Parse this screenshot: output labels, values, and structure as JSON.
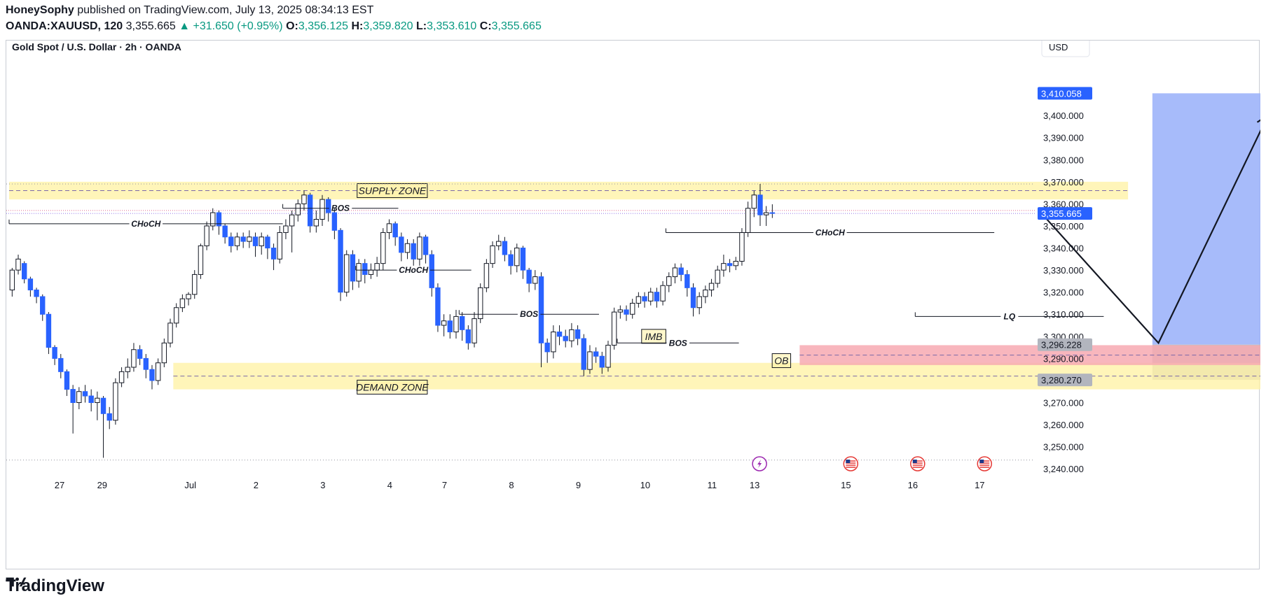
{
  "header": {
    "author": "HoneySophy",
    "published_text": "published on TradingView.com, July 13, 2025 08:34:13 EST",
    "symbol": "OANDA:XAUUSD, 120",
    "last": "3,355.665",
    "change": "▲ +31.650 (+0.95%)",
    "o_label": "O:",
    "o_value": "3,356.125",
    "h_label": "H:",
    "h_value": "3,359.820",
    "l_label": "L:",
    "l_value": "3,353.610",
    "c_label": "C:",
    "c_value": "3,355.665"
  },
  "chart_title": "Gold Spot / U.S. Dollar · 2h · OANDA",
  "currency_button": "USD",
  "footer": {
    "brand": "TradingView"
  },
  "colors": {
    "up_body": "#ffffff",
    "down_body": "#2962ff",
    "wick": "#131722",
    "supply": "#fff2a8",
    "demand": "#fff2a8",
    "ob": "#f7a9b2",
    "target": "#9db4fa",
    "stop": "#b5b5b5"
  },
  "chart_data": {
    "type": "candlestick",
    "y_axis": {
      "min": 3235,
      "max": 3420,
      "ticks": [
        "3,240.000",
        "3,250.000",
        "3,260.000",
        "3,270.000",
        "3,280.000",
        "3,290.000",
        "3,300.000",
        "3,310.000",
        "3,320.000",
        "3,330.000",
        "3,340.000",
        "3,350.000",
        "3,360.000",
        "3,370.000",
        "3,380.000",
        "3,390.000",
        "3,400.000"
      ]
    },
    "x_axis": {
      "labels": [
        "27",
        "29",
        "Jul",
        "2",
        "3",
        "4",
        "7",
        "8",
        "9",
        "10",
        "11",
        "13",
        "15",
        "16",
        "17"
      ]
    },
    "price_tags": [
      {
        "label": "3,410.058",
        "value": 3410.058,
        "style": "blue"
      },
      {
        "label": "3,355.665",
        "value": 3355.665,
        "style": "blue"
      },
      {
        "label": "3,296.228",
        "value": 3296.228,
        "style": "gray"
      },
      {
        "label": "3,280.270",
        "value": 3280.27,
        "style": "gray"
      }
    ],
    "zones": [
      {
        "label": "SUPPLY ZONE",
        "from": 3362,
        "to": 3370,
        "x0": 0,
        "x1": 184
      },
      {
        "label": "DEMAND ZONE",
        "from": 3276,
        "to": 3288,
        "x0": 27,
        "x1": 215
      },
      {
        "label": "OB",
        "from": 3287,
        "to": 3296,
        "x0": 130,
        "x1": 223
      },
      {
        "label": "IMB",
        "at": 3298,
        "x": 144
      }
    ],
    "structure": [
      {
        "label": "CHoCH",
        "value": 3351,
        "x0": 0,
        "x1": 45
      },
      {
        "label": "BOS",
        "value": 3358,
        "x0": 45,
        "x1": 64
      },
      {
        "label": "CHoCH",
        "value": 3330,
        "x0": 57,
        "x1": 76
      },
      {
        "label": "BOS",
        "value": 3310,
        "x0": 74,
        "x1": 97
      },
      {
        "label": "CHoCH",
        "value": 3347,
        "x0": 108,
        "x1": 162
      },
      {
        "label": "BOS",
        "value": 3297,
        "x0": 100,
        "x1": 120
      },
      {
        "label": "LQ",
        "value": 3309,
        "x0": 149,
        "x1": 180
      }
    ],
    "position": {
      "entry": 3296.228,
      "target": 3410.058,
      "stop": 3280.27,
      "x0": 188,
      "x1": 225
    },
    "projection": [
      {
        "x": 170,
        "y": 3355
      },
      {
        "x": 189,
        "y": 3297
      },
      {
        "x": 207,
        "y": 3400
      }
    ],
    "candles": [
      [
        3321,
        3330,
        3318,
        3331
      ],
      [
        3330,
        3335,
        3328,
        3337
      ],
      [
        3333,
        3326,
        3324,
        3334
      ],
      [
        3326,
        3321,
        3318,
        3327
      ],
      [
        3321,
        3318,
        3315,
        3322
      ],
      [
        3318,
        3310,
        3307,
        3319
      ],
      [
        3310,
        3295,
        3292,
        3311
      ],
      [
        3295,
        3290,
        3287,
        3296
      ],
      [
        3290,
        3284,
        3281,
        3292
      ],
      [
        3284,
        3276,
        3273,
        3285
      ],
      [
        3276,
        3270,
        3256,
        3278
      ],
      [
        3270,
        3275,
        3267,
        3277
      ],
      [
        3275,
        3273,
        3270,
        3278
      ],
      [
        3273,
        3270,
        3266,
        3276
      ],
      [
        3270,
        3272,
        3262,
        3275
      ],
      [
        3272,
        3265,
        3245,
        3273
      ],
      [
        3265,
        3262,
        3258,
        3268
      ],
      [
        3262,
        3279,
        3260,
        3281
      ],
      [
        3279,
        3284,
        3277,
        3286
      ],
      [
        3284,
        3286,
        3281,
        3290
      ],
      [
        3286,
        3294,
        3284,
        3297
      ],
      [
        3294,
        3290,
        3287,
        3296
      ],
      [
        3290,
        3285,
        3281,
        3292
      ],
      [
        3285,
        3280,
        3276,
        3287
      ],
      [
        3280,
        3288,
        3278,
        3290
      ],
      [
        3288,
        3297,
        3286,
        3299
      ],
      [
        3297,
        3306,
        3295,
        3308
      ],
      [
        3306,
        3313,
        3304,
        3315
      ],
      [
        3313,
        3317,
        3311,
        3319
      ],
      [
        3317,
        3319,
        3314,
        3320
      ],
      [
        3319,
        3328,
        3317,
        3330
      ],
      [
        3328,
        3341,
        3326,
        3342
      ],
      [
        3341,
        3350,
        3339,
        3352
      ],
      [
        3350,
        3356,
        3348,
        3358
      ],
      [
        3356,
        3350,
        3346,
        3357
      ],
      [
        3350,
        3345,
        3342,
        3351
      ],
      [
        3345,
        3341,
        3338,
        3347
      ],
      [
        3341,
        3345,
        3339,
        3347
      ],
      [
        3345,
        3343,
        3340,
        3347
      ],
      [
        3343,
        3345,
        3340,
        3348
      ],
      [
        3345,
        3341,
        3336,
        3347
      ],
      [
        3341,
        3345,
        3337,
        3347
      ],
      [
        3345,
        3340,
        3335,
        3346
      ],
      [
        3340,
        3335,
        3330,
        3342
      ],
      [
        3335,
        3347,
        3333,
        3350
      ],
      [
        3347,
        3350,
        3344,
        3353
      ],
      [
        3350,
        3355,
        3338,
        3357
      ],
      [
        3355,
        3360,
        3352,
        3362
      ],
      [
        3360,
        3364,
        3357,
        3366
      ],
      [
        3364,
        3350,
        3347,
        3365
      ],
      [
        3350,
        3353,
        3347,
        3357
      ],
      [
        3353,
        3362,
        3350,
        3364
      ],
      [
        3362,
        3356,
        3352,
        3363
      ],
      [
        3356,
        3348,
        3344,
        3358
      ],
      [
        3348,
        3320,
        3316,
        3349
      ],
      [
        3320,
        3337,
        3318,
        3339
      ],
      [
        3337,
        3325,
        3321,
        3339
      ],
      [
        3325,
        3333,
        3322,
        3335
      ],
      [
        3333,
        3328,
        3324,
        3335
      ],
      [
        3328,
        3330,
        3326,
        3333
      ],
      [
        3330,
        3333,
        3327,
        3336
      ],
      [
        3333,
        3347,
        3330,
        3349
      ],
      [
        3347,
        3351,
        3344,
        3353
      ],
      [
        3351,
        3345,
        3341,
        3352
      ],
      [
        3345,
        3338,
        3334,
        3347
      ],
      [
        3338,
        3342,
        3335,
        3344
      ],
      [
        3342,
        3335,
        3332,
        3344
      ],
      [
        3335,
        3345,
        3332,
        3347
      ],
      [
        3345,
        3337,
        3333,
        3346
      ],
      [
        3337,
        3322,
        3318,
        3339
      ],
      [
        3322,
        3305,
        3302,
        3324
      ],
      [
        3305,
        3307,
        3300,
        3310
      ],
      [
        3307,
        3302,
        3299,
        3310
      ],
      [
        3302,
        3309,
        3299,
        3312
      ],
      [
        3309,
        3303,
        3298,
        3311
      ],
      [
        3303,
        3297,
        3294,
        3305
      ],
      [
        3297,
        3308,
        3295,
        3311
      ],
      [
        3308,
        3322,
        3306,
        3324
      ],
      [
        3322,
        3333,
        3320,
        3335
      ],
      [
        3333,
        3341,
        3331,
        3343
      ],
      [
        3341,
        3343,
        3339,
        3346
      ],
      [
        3343,
        3337,
        3334,
        3345
      ],
      [
        3337,
        3332,
        3328,
        3339
      ],
      [
        3332,
        3340,
        3329,
        3342
      ],
      [
        3340,
        3330,
        3326,
        3341
      ],
      [
        3330,
        3324,
        3320,
        3331
      ],
      [
        3324,
        3327,
        3321,
        3330
      ],
      [
        3327,
        3297,
        3286,
        3329
      ],
      [
        3297,
        3293,
        3288,
        3299
      ],
      [
        3293,
        3302,
        3290,
        3305
      ],
      [
        3302,
        3300,
        3296,
        3305
      ],
      [
        3300,
        3298,
        3295,
        3303
      ],
      [
        3298,
        3303,
        3295,
        3306
      ],
      [
        3303,
        3299,
        3296,
        3305
      ],
      [
        3299,
        3285,
        3282,
        3301
      ],
      [
        3285,
        3293,
        3283,
        3296
      ],
      [
        3293,
        3291,
        3288,
        3295
      ],
      [
        3291,
        3286,
        3283,
        3293
      ],
      [
        3286,
        3296,
        3284,
        3298
      ],
      [
        3296,
        3311,
        3294,
        3313
      ],
      [
        3311,
        3312,
        3308,
        3314
      ],
      [
        3312,
        3310,
        3307,
        3314
      ],
      [
        3310,
        3315,
        3308,
        3317
      ],
      [
        3315,
        3318,
        3313,
        3320
      ],
      [
        3318,
        3316,
        3313,
        3320
      ],
      [
        3316,
        3320,
        3314,
        3322
      ],
      [
        3320,
        3316,
        3313,
        3322
      ],
      [
        3316,
        3323,
        3314,
        3325
      ],
      [
        3323,
        3327,
        3320,
        3329
      ],
      [
        3327,
        3331,
        3324,
        3333
      ],
      [
        3331,
        3328,
        3325,
        3333
      ],
      [
        3328,
        3322,
        3318,
        3330
      ],
      [
        3322,
        3313,
        3309,
        3324
      ],
      [
        3313,
        3318,
        3310,
        3320
      ],
      [
        3318,
        3321,
        3315,
        3323
      ],
      [
        3321,
        3324,
        3318,
        3326
      ],
      [
        3324,
        3330,
        3322,
        3332
      ],
      [
        3330,
        3333,
        3327,
        3337
      ],
      [
        3333,
        3332,
        3329,
        3335
      ],
      [
        3332,
        3334,
        3330,
        3336
      ],
      [
        3334,
        3347,
        3332,
        3349
      ],
      [
        3347,
        3358,
        3345,
        3361
      ],
      [
        3358,
        3364,
        3354,
        3366
      ],
      [
        3364,
        3355,
        3350,
        3369
      ],
      [
        3355,
        3356,
        3350,
        3359
      ],
      [
        3356,
        3355.665,
        3353.6,
        3359.8
      ]
    ]
  }
}
